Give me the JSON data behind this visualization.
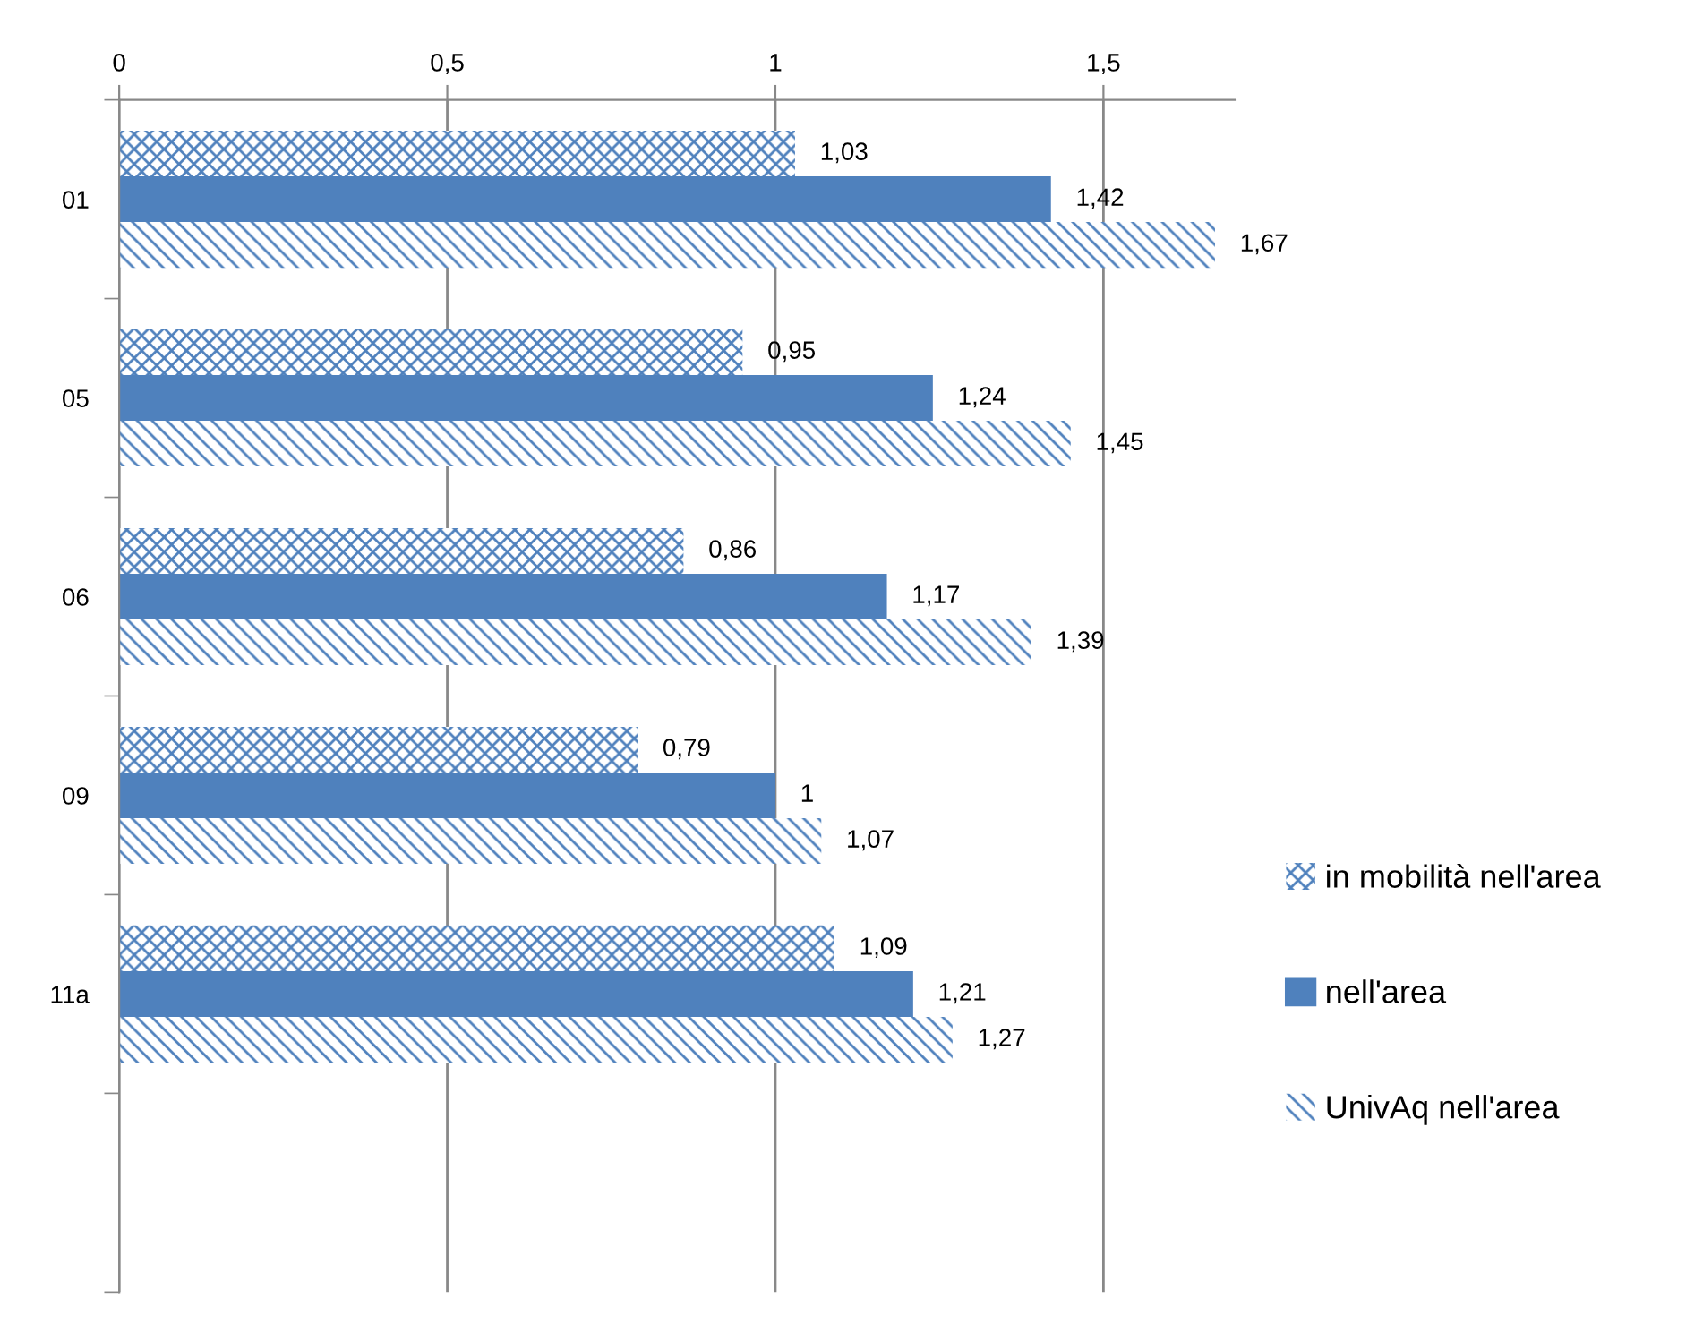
{
  "chart_data": {
    "type": "bar",
    "orientation": "horizontal",
    "categories": [
      "01",
      "05",
      "06",
      "09",
      "11a",
      null
    ],
    "series": [
      {
        "name": "in mobilità nell'area",
        "color": "#4f81bd",
        "values": [
          1.03,
          0.95,
          0.86,
          0.79,
          1.09,
          null
        ],
        "value_labels": [
          "1,03",
          "0,95",
          "0,86",
          "0,79",
          "1,09",
          null
        ]
      },
      {
        "name": "nell'area",
        "color": "#4f81bd",
        "values": [
          1.42,
          1.24,
          1.17,
          1.0,
          1.21,
          null
        ],
        "value_labels": [
          "1,42",
          "1,24",
          "1,17",
          "1",
          "1,21",
          null
        ]
      },
      {
        "name": "UnivAq nell'area",
        "color": "#4f81bd",
        "values": [
          1.67,
          1.45,
          1.39,
          1.07,
          1.27,
          null
        ],
        "value_labels": [
          "1,67",
          "1,45",
          "1,39",
          "1,07",
          "1,27",
          null
        ]
      }
    ],
    "xlim": [
      0,
      1.7
    ],
    "xticks": [
      0,
      {
        "value": 0.5,
        "label": "0,5"
      },
      1,
      {
        "value": 1.5,
        "label": "1,5"
      }
    ],
    "grid": "x",
    "legend": "right"
  }
}
